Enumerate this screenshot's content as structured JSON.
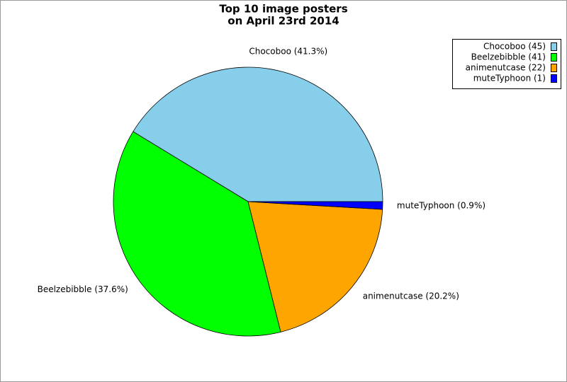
{
  "chart_data": {
    "type": "pie",
    "title_lines": [
      "Top 10 image posters",
      "on April 23rd 2014"
    ],
    "categories": [
      "Chocoboo (45)",
      "Beelzebibble (41)",
      "animenutcase (22)",
      "muteTyphoon (1)"
    ],
    "values": [
      45,
      41,
      22,
      1
    ],
    "value_labels": [
      "Chocoboo (41.3%)",
      "Beelzebibble (37.6%)",
      "animenutcase (20.2%)",
      "muteTyphoon (0.9%)"
    ],
    "colors": [
      "#87ceeb",
      "#00ff00",
      "#ffa500",
      "#0000ff"
    ],
    "legend": "top-right"
  }
}
